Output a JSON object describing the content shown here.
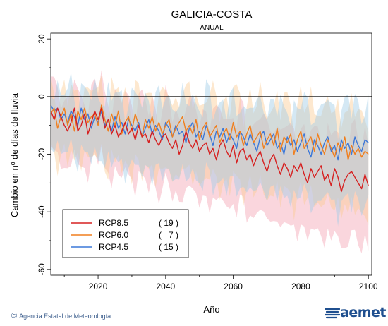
{
  "chart_data": {
    "type": "line",
    "title": "GALICIA-COSTA",
    "subtitle": "ANUAL",
    "xlabel": "Año",
    "ylabel": "Cambio en nº de días de lluvia",
    "xlim": [
      2006,
      2101
    ],
    "ylim": [
      -62,
      22
    ],
    "x_ticks": [
      "2020",
      "2040",
      "2060",
      "2080",
      "2100"
    ],
    "y_ticks": [
      "20",
      "0",
      "-20",
      "-40",
      "-60"
    ],
    "zero_line": 0,
    "legend": {
      "placement": "bottom-left",
      "entries": [
        {
          "label": "RCP8.5",
          "count": "( 19 )"
        },
        {
          "label": "RCP6.0",
          "count": "(   7 )"
        },
        {
          "label": "RCP4.5",
          "count": "( 15 )"
        }
      ]
    },
    "x": [
      2006,
      2007,
      2008,
      2009,
      2010,
      2011,
      2012,
      2013,
      2014,
      2015,
      2016,
      2017,
      2018,
      2019,
      2020,
      2021,
      2022,
      2023,
      2024,
      2025,
      2026,
      2027,
      2028,
      2029,
      2030,
      2031,
      2032,
      2033,
      2034,
      2035,
      2036,
      2037,
      2038,
      2039,
      2040,
      2041,
      2042,
      2043,
      2044,
      2045,
      2046,
      2047,
      2048,
      2049,
      2050,
      2051,
      2052,
      2053,
      2054,
      2055,
      2056,
      2057,
      2058,
      2059,
      2060,
      2061,
      2062,
      2063,
      2064,
      2065,
      2066,
      2067,
      2068,
      2069,
      2070,
      2071,
      2072,
      2073,
      2074,
      2075,
      2076,
      2077,
      2078,
      2079,
      2080,
      2081,
      2082,
      2083,
      2084,
      2085,
      2086,
      2087,
      2088,
      2089,
      2090,
      2091,
      2092,
      2093,
      2094,
      2095,
      2096,
      2097,
      2098,
      2099,
      2100
    ],
    "series": [
      {
        "name": "RCP8.5",
        "color": "#d62020",
        "band_color": "#f4a5b3",
        "values": [
          -5,
          -8,
          -4,
          -7,
          -10,
          -12,
          -9,
          -4,
          -12,
          -10,
          -6,
          -13,
          -9,
          -5,
          -8,
          -4,
          -11,
          -8,
          -13,
          -10,
          -14,
          -12,
          -9,
          -13,
          -11,
          -15,
          -10,
          -14,
          -13,
          -16,
          -12,
          -15,
          -17,
          -14,
          -13,
          -16,
          -18,
          -15,
          -20,
          -17,
          -12,
          -16,
          -18,
          -15,
          -19,
          -17,
          -16,
          -20,
          -18,
          -22,
          -17,
          -15,
          -19,
          -21,
          -17,
          -23,
          -19,
          -18,
          -22,
          -20,
          -24,
          -21,
          -19,
          -23,
          -26,
          -22,
          -20,
          -24,
          -27,
          -23,
          -25,
          -28,
          -24,
          -26,
          -23,
          -27,
          -30,
          -25,
          -28,
          -26,
          -24,
          -29,
          -27,
          -31,
          -25,
          -28,
          -33,
          -29,
          -27,
          -26,
          -28,
          -30,
          -32,
          -27,
          -31
        ]
      },
      {
        "name": "RCP6.0",
        "color": "#f07f1e",
        "band_color": "#fbcb94",
        "values": [
          -6,
          -4,
          -11,
          -7,
          -4,
          -10,
          -6,
          -12,
          -5,
          -8,
          -4,
          -9,
          -7,
          -6,
          -10,
          -3,
          -8,
          -12,
          -6,
          -10,
          -5,
          -13,
          -9,
          -7,
          -12,
          -6,
          -10,
          -14,
          -8,
          -11,
          -7,
          -12,
          -9,
          -13,
          -10,
          -8,
          -14,
          -11,
          -9,
          -7,
          -12,
          -10,
          -13,
          -8,
          -15,
          -11,
          -9,
          -14,
          -12,
          -10,
          -16,
          -13,
          -11,
          -15,
          -9,
          -14,
          -12,
          -17,
          -13,
          -10,
          -16,
          -14,
          -12,
          -18,
          -15,
          -13,
          -17,
          -11,
          -19,
          -14,
          -16,
          -13,
          -20,
          -15,
          -12,
          -18,
          -16,
          -14,
          -19,
          -13,
          -17,
          -20,
          -15,
          -18,
          -21,
          -16,
          -19,
          -14,
          -22,
          -17,
          -20,
          -18,
          -21,
          -19,
          -20
        ]
      },
      {
        "name": "RCP4.5",
        "color": "#3c78d8",
        "band_color": "#9fcde6",
        "values": [
          -3,
          -5,
          -4,
          -8,
          -6,
          -9,
          -5,
          -7,
          -10,
          -4,
          -8,
          -6,
          -11,
          -7,
          -9,
          -5,
          -10,
          -8,
          -12,
          -7,
          -11,
          -9,
          -13,
          -8,
          -10,
          -12,
          -9,
          -14,
          -11,
          -8,
          -13,
          -10,
          -12,
          -15,
          -9,
          -11,
          -14,
          -10,
          -13,
          -12,
          -16,
          -11,
          -9,
          -14,
          -12,
          -15,
          -10,
          -13,
          -17,
          -12,
          -14,
          -11,
          -16,
          -13,
          -15,
          -18,
          -12,
          -14,
          -17,
          -13,
          -16,
          -19,
          -14,
          -12,
          -17,
          -15,
          -13,
          -18,
          -16,
          -20,
          -14,
          -17,
          -15,
          -19,
          -16,
          -13,
          -18,
          -21,
          -15,
          -17,
          -20,
          -16,
          -14,
          -19,
          -17,
          -22,
          -15,
          -18,
          -16,
          -20,
          -14,
          -17,
          -19,
          -15,
          -16
        ]
      }
    ]
  },
  "footer": {
    "credit": "Agencia Estatal de Meteorología",
    "copyright_symbol": "©",
    "brand": "aemet"
  }
}
